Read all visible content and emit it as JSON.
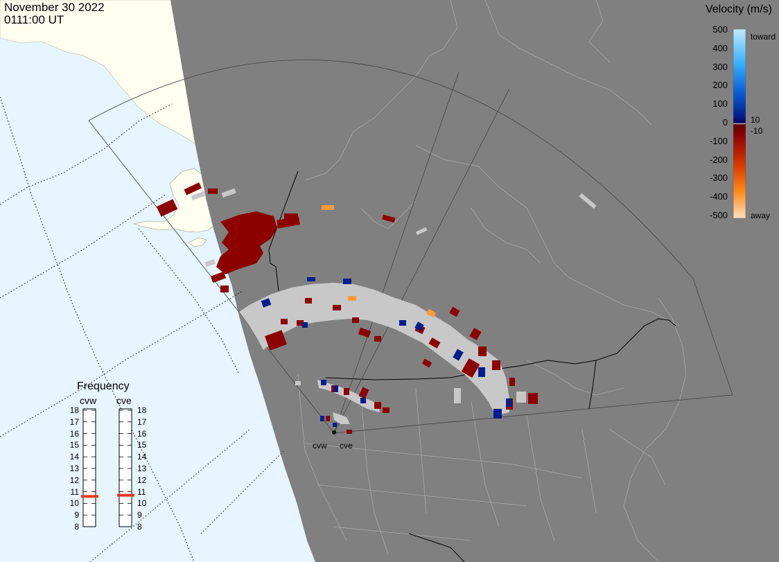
{
  "header": {
    "date": "November 30 2022",
    "time": "0111:00 UT"
  },
  "velocity_scale": {
    "title": "Velocity (m/s)",
    "ticks": [
      "500",
      "400",
      "300",
      "200",
      "100",
      "0",
      "-100",
      "-200",
      "-300",
      "-400",
      "-500"
    ],
    "side_labels": {
      "toward": "toward",
      "away": "away",
      "plus": "10",
      "minus": "-10"
    },
    "colors": {
      "toward_light": "#bfe9ff",
      "toward_mid": "#1f8fe8",
      "toward_dark": "#001f8c",
      "near_zero": "#c8c8c8",
      "away_dark": "#8c0000",
      "away_mid": "#e05a00",
      "away_light": "#ffd6a8"
    }
  },
  "frequency_panel": {
    "title": "Frequency",
    "radars": [
      {
        "name": "cvw",
        "frequency_mhz": 10.6
      },
      {
        "name": "cve",
        "frequency_mhz": 10.7
      }
    ],
    "ticks": [
      "18",
      "17",
      "16",
      "15",
      "14",
      "13",
      "12",
      "11",
      "10",
      "9",
      "8"
    ]
  },
  "map": {
    "colors": {
      "ocean": "#e6f5ff",
      "land_day": "#fffff0",
      "night": "#808080",
      "border": "#000000",
      "boundary": "#a8a8a8",
      "ground_scatter": "#c8c8c8",
      "velocity_away": "#8c0000",
      "velocity_toward": "#001f8c",
      "velocity_away_fast": "#ff9a3c"
    },
    "radar_sites": [
      {
        "name": "cvw",
        "label": "cvw"
      },
      {
        "name": "cve",
        "label": "cve"
      }
    ]
  }
}
